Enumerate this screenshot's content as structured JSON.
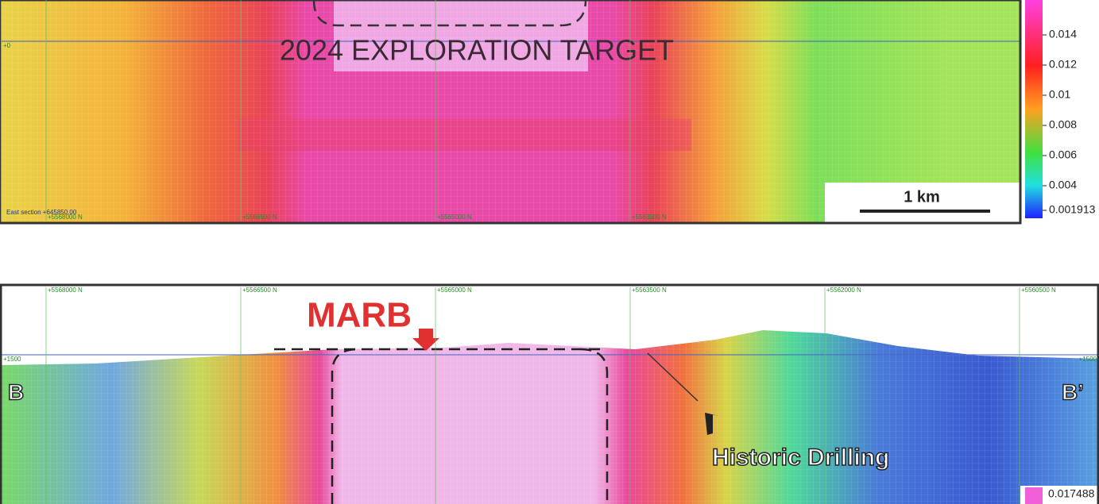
{
  "top_panel": {
    "target_label": "2024 EXPLORATION TARGET",
    "elevation_label": "+0",
    "section_label": "East section +645850.00",
    "northings": [
      "+5568000 N",
      "+5566500 N",
      "+5565000 N",
      "+5563500 N"
    ],
    "scale_label": "1 km",
    "legend_labels": [
      "0.014",
      "0.012",
      "0.01",
      "0.008",
      "0.006",
      "0.004",
      "0.001913"
    ]
  },
  "bottom_panel": {
    "northings": [
      "+5568000 N",
      "+5566500 N",
      "+5565000 N",
      "+5563500 N",
      "+5562000 N",
      "+5560500 N"
    ],
    "elevation_labels": [
      "+1500",
      "+1500"
    ],
    "marb_label": "MARB",
    "left_label": "B",
    "right_label": "B’",
    "drilling_label": "Historic Drilling",
    "legend_label": "0.017488"
  }
}
